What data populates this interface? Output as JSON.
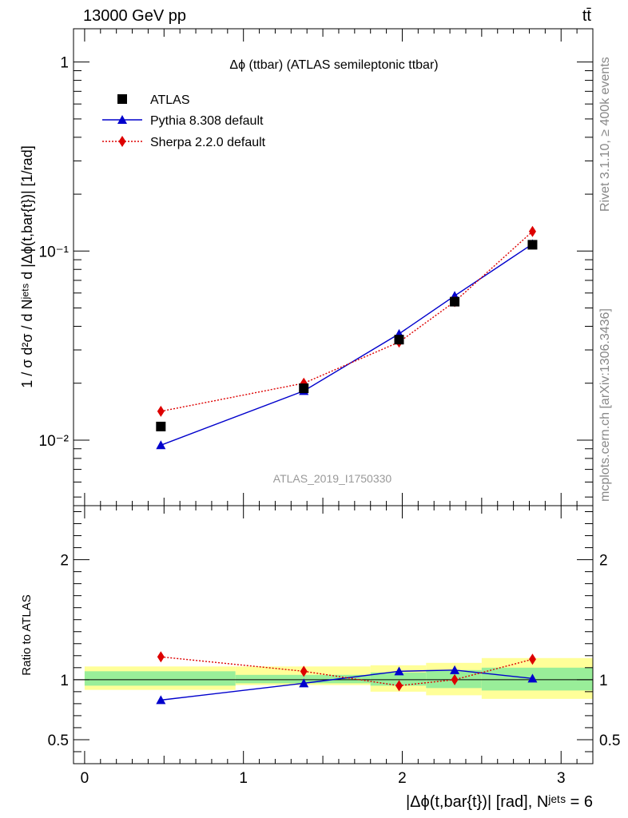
{
  "header": {
    "energy_label": "13000 GeV pp",
    "process_label": "tt̄"
  },
  "side_labels": {
    "rivet": "Rivet 3.1.10, ≥ 400k events",
    "source": "mcplots.cern.ch [arXiv:1306.3436]"
  },
  "watermark": "ATLAS_2019_I1750330",
  "chart_data": [
    {
      "type": "line",
      "title": "Δϕ (ttbar) (ATLAS semileptonic ttbar)",
      "ylabel": "1 / σ d²σ / d Nʲᵉᵗˢ d |Δϕ(t,bar{t})| [1/rad]",
      "yscale": "log",
      "ylim": [
        0.0045,
        1.5
      ],
      "xlim": [
        -0.07,
        3.2
      ],
      "legend_position": "top-left",
      "y_tick_labels": [
        "10⁻²",
        "10⁻¹",
        "1"
      ],
      "series": [
        {
          "name": "ATLAS",
          "marker": "square",
          "color": "#000000",
          "x": [
            0.48,
            1.38,
            1.98,
            2.33,
            2.82
          ],
          "y": [
            0.0118,
            0.0188,
            0.034,
            0.054,
            0.108
          ]
        },
        {
          "name": "Pythia 8.308 default",
          "marker": "triangle",
          "color": "#0000cc",
          "line": "solid",
          "x": [
            0.48,
            1.38,
            1.98,
            2.33,
            2.82
          ],
          "y": [
            0.0094,
            0.0182,
            0.0365,
            0.058,
            0.109
          ]
        },
        {
          "name": "Sherpa 2.2.0 default",
          "marker": "diamond",
          "color": "#dd0000",
          "line": "dotted",
          "x": [
            0.48,
            1.38,
            1.98,
            2.33,
            2.82
          ],
          "y": [
            0.0142,
            0.02,
            0.033,
            0.054,
            0.127
          ]
        }
      ]
    },
    {
      "type": "line",
      "ylabel": "Ratio to ATLAS",
      "xlabel": "|Δϕ(t,bar{t})| [rad], Nʲᵉᵗˢ = 6",
      "ylim": [
        0.3,
        2.45
      ],
      "xlim": [
        -0.07,
        3.2
      ],
      "x_tick_labels": [
        "0",
        "1",
        "2",
        "3"
      ],
      "y_tick_labels": [
        "0.5",
        "1",
        "2"
      ],
      "reference_line": 1,
      "uncertainty_bands": {
        "edges": [
          0,
          0.95,
          1.8,
          2.15,
          2.5,
          3.2
        ],
        "inner": [
          [
            0.95,
            1.07
          ],
          [
            0.97,
            1.04
          ],
          [
            0.95,
            1.06
          ],
          [
            0.93,
            1.08
          ],
          [
            0.91,
            1.1
          ]
        ],
        "outer": [
          [
            0.915,
            1.11
          ],
          [
            0.955,
            1.11
          ],
          [
            0.9,
            1.12
          ],
          [
            0.87,
            1.14
          ],
          [
            0.84,
            1.18
          ]
        ],
        "inner_color": "#99ee99",
        "outer_color": "#ffff99"
      },
      "series": [
        {
          "name": "Pythia 8.308 default",
          "marker": "triangle",
          "color": "#0000cc",
          "line": "solid",
          "x": [
            0.48,
            1.38,
            1.98,
            2.33,
            2.82
          ],
          "y": [
            0.83,
            0.97,
            1.07,
            1.08,
            1.01
          ]
        },
        {
          "name": "Sherpa 2.2.0 default",
          "marker": "diamond",
          "color": "#dd0000",
          "line": "dotted",
          "x": [
            0.48,
            1.38,
            1.98,
            2.33,
            2.82
          ],
          "y": [
            1.19,
            1.07,
            0.95,
            1.0,
            1.17
          ]
        }
      ]
    }
  ]
}
